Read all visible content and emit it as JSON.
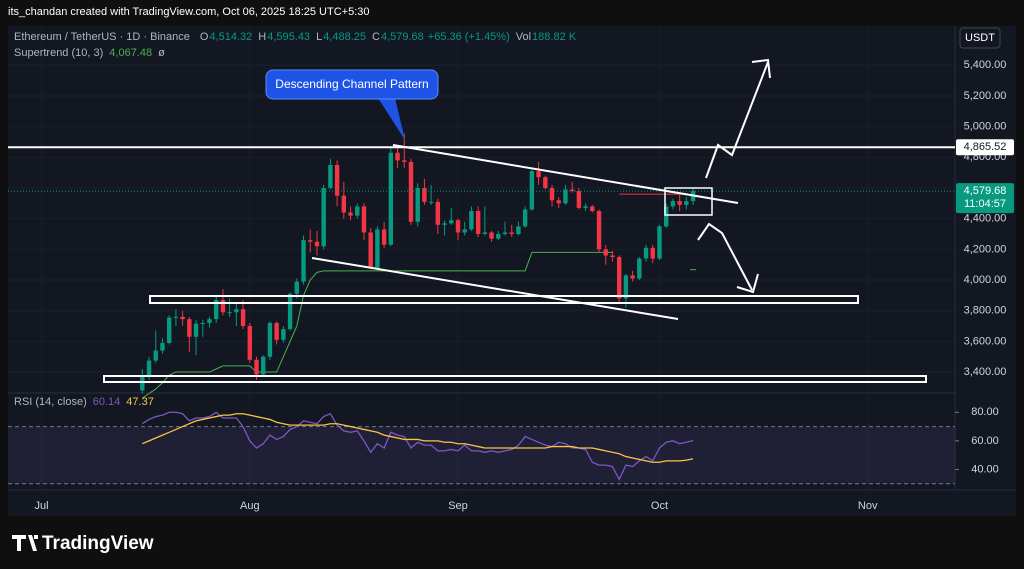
{
  "header": {
    "credit": "its_chandan created with TradingView.com, Oct 06, 2025 18:25 UTC+5:30",
    "symbol": "Ethereum / TetherUS · 1D · Binance",
    "ohlc": [
      {
        "key": "O",
        "value": "4,514.32"
      },
      {
        "key": "H",
        "value": "4,595.43"
      },
      {
        "key": "L",
        "value": "4,488.25"
      },
      {
        "key": "C",
        "value": "4,579.68"
      }
    ],
    "change": "+65.36 (+1.45%)",
    "vol_key": "Vol",
    "vol": "188.82 K",
    "currency": "USDT"
  },
  "chart_data": {
    "type": "candlestick",
    "x": [
      15,
      16,
      17,
      18,
      19,
      20,
      21,
      22,
      23,
      24,
      25,
      26,
      27,
      28,
      29,
      30,
      31,
      32,
      33,
      34,
      35,
      36,
      37,
      38,
      39,
      40,
      41,
      42,
      43,
      44,
      45,
      46,
      47,
      48,
      49,
      50,
      51,
      52,
      53,
      54,
      55,
      56,
      57,
      58,
      59,
      60,
      61,
      62,
      63,
      64,
      65,
      66,
      67,
      68,
      69,
      70,
      71,
      72,
      73,
      74,
      75,
      76,
      77,
      78,
      79,
      80,
      81,
      82,
      83,
      84,
      85,
      86,
      87,
      88,
      89,
      90,
      91,
      92,
      93,
      94,
      95,
      96,
      97
    ],
    "xlim": [
      -5,
      136
    ],
    "xticks": [
      {
        "value": 0,
        "label": "Jul"
      },
      {
        "value": 31,
        "label": "Aug"
      },
      {
        "value": 62,
        "label": "Sep"
      },
      {
        "value": 92,
        "label": "Oct"
      },
      {
        "value": 123,
        "label": "Nov"
      }
    ],
    "open": [
      3280,
      3370,
      3475,
      3540,
      3590,
      3755,
      3760,
      3745,
      3630,
      3715,
      3720,
      3745,
      3870,
      3790,
      3790,
      3810,
      3700,
      3480,
      3385,
      3500,
      3720,
      3610,
      3680,
      3910,
      3990,
      4260,
      4250,
      4220,
      4600,
      4750,
      4550,
      4440,
      4420,
      4480,
      4310,
      4080,
      4330,
      4230,
      4830,
      4780,
      4770,
      4380,
      4600,
      4510,
      4510,
      4360,
      4370,
      4390,
      4310,
      4330,
      4450,
      4300,
      4310,
      4270,
      4300,
      4310,
      4300,
      4350,
      4460,
      4710,
      4670,
      4600,
      4520,
      4500,
      4590,
      4580,
      4470,
      4480,
      4450,
      4200,
      4160,
      4150,
      3880,
      4030,
      4010,
      4140,
      4210,
      4140,
      4350,
      4480,
      4515,
      4490,
      4514.32
    ],
    "high": [
      3420,
      3500,
      3670,
      3620,
      3770,
      3810,
      3800,
      3760,
      3740,
      3740,
      3760,
      3890,
      3940,
      3880,
      3850,
      3870,
      3720,
      3500,
      3510,
      3730,
      3730,
      3700,
      3920,
      4010,
      4290,
      4330,
      4320,
      4620,
      4790,
      4780,
      4640,
      4480,
      4500,
      4500,
      4340,
      4350,
      4380,
      4860,
      4880,
      4955,
      4790,
      4630,
      4660,
      4620,
      4530,
      4390,
      4470,
      4400,
      4380,
      4480,
      4480,
      4480,
      4320,
      4320,
      4380,
      4360,
      4380,
      4480,
      4720,
      4770,
      4680,
      4620,
      4540,
      4620,
      4640,
      4600,
      4500,
      4490,
      4460,
      4230,
      4190,
      4160,
      4040,
      4060,
      4150,
      4230,
      4230,
      4360,
      4500,
      4530,
      4560,
      4540,
      4595.43
    ],
    "low": [
      3260,
      3350,
      3460,
      3520,
      3580,
      3700,
      3700,
      3530,
      3510,
      3630,
      3690,
      3720,
      3770,
      3760,
      3700,
      3680,
      3460,
      3350,
      3370,
      3480,
      3580,
      3590,
      3670,
      3880,
      3970,
      4180,
      4160,
      4200,
      4590,
      4480,
      4400,
      4390,
      4400,
      4260,
      4070,
      4060,
      4210,
      4220,
      4730,
      4730,
      4360,
      4350,
      4490,
      4490,
      4300,
      4290,
      4360,
      4260,
      4290,
      4320,
      4280,
      4290,
      4250,
      4260,
      4290,
      4280,
      4290,
      4340,
      4450,
      4620,
      4590,
      4480,
      4470,
      4490,
      4570,
      4460,
      4450,
      4440,
      4180,
      4100,
      4120,
      3850,
      3820,
      3990,
      4000,
      4120,
      4110,
      4130,
      4340,
      4460,
      4450,
      4460,
      4488.25
    ],
    "close": [
      3370,
      3475,
      3540,
      3590,
      3755,
      3760,
      3745,
      3630,
      3715,
      3720,
      3745,
      3870,
      3790,
      3790,
      3810,
      3700,
      3480,
      3385,
      3500,
      3720,
      3610,
      3680,
      3910,
      3990,
      4260,
      4250,
      4220,
      4600,
      4750,
      4550,
      4440,
      4420,
      4480,
      4310,
      4080,
      4330,
      4230,
      4830,
      4780,
      4770,
      4380,
      4600,
      4510,
      4510,
      4360,
      4370,
      4390,
      4310,
      4330,
      4450,
      4300,
      4310,
      4270,
      4300,
      4310,
      4300,
      4350,
      4460,
      4710,
      4670,
      4600,
      4520,
      4500,
      4590,
      4580,
      4470,
      4480,
      4450,
      4200,
      4160,
      4150,
      3880,
      4030,
      4010,
      4140,
      4210,
      4140,
      4350,
      4480,
      4515,
      4490,
      4514,
      4579.68
    ],
    "up_color": "#089981",
    "down_color": "#f23645",
    "ylim": [
      3270,
      5630
    ],
    "yticks": [
      {
        "value": 5400,
        "label": "5,400.00"
      },
      {
        "value": 5200,
        "label": "5,200.00"
      },
      {
        "value": 5000,
        "label": "5,000.00"
      },
      {
        "value": 4800,
        "label": "4,800.00"
      },
      {
        "value": 4600,
        "label": "4,600.00"
      },
      {
        "value": 4400,
        "label": "4,400.00"
      },
      {
        "value": 4200,
        "label": "4,200.00"
      },
      {
        "value": 4000,
        "label": "4,000.00"
      },
      {
        "value": 3800,
        "label": "3,800.00"
      },
      {
        "value": 3600,
        "label": "3,600.00"
      },
      {
        "value": 3400,
        "label": "3,400.00"
      }
    ],
    "price_line": {
      "value": 4579.68,
      "label": "4,579.68",
      "countdown": "11:04:57"
    },
    "hline": {
      "value": 4865.52,
      "label": "4,865.52"
    },
    "annotation": "Descending Channel Pattern",
    "supertrend": {
      "name": "Supertrend (10, 3)",
      "value_label": "4,067.48",
      "suffix": "ø",
      "up_color": "#4caf50",
      "down_color": "#f23645",
      "up": [
        3230,
        3260,
        3290,
        3330,
        3380,
        3400,
        3400,
        3400,
        3400,
        3400,
        3400,
        3420,
        3440,
        3440,
        3440,
        3440,
        3440,
        3400,
        3400,
        3400,
        3400,
        3500,
        3600,
        3700,
        3900,
        4000,
        4050,
        4060,
        4060,
        4060,
        4060,
        4060,
        4060,
        4060,
        4060,
        4060,
        4060,
        4060,
        4060,
        4060,
        4060,
        4060,
        4060,
        4060,
        4060,
        4060,
        4060,
        4060,
        4060,
        4060,
        4060,
        4060,
        4060,
        4060,
        4060,
        4060,
        4060,
        4060,
        4180,
        4180,
        4180,
        4180,
        4180,
        4180,
        4180,
        4180,
        4180,
        4180,
        4180,
        4180,
        4180,
        null,
        null,
        null,
        null,
        null,
        null,
        null,
        null,
        null,
        null,
        null,
        4067.48
      ],
      "down": [
        null,
        null,
        null,
        null,
        null,
        null,
        null,
        null,
        null,
        null,
        null,
        null,
        null,
        null,
        null,
        null,
        null,
        null,
        null,
        null,
        null,
        null,
        null,
        null,
        null,
        null,
        null,
        null,
        null,
        null,
        null,
        null,
        null,
        null,
        null,
        null,
        null,
        null,
        null,
        null,
        null,
        null,
        null,
        null,
        null,
        null,
        null,
        null,
        null,
        null,
        null,
        null,
        null,
        null,
        null,
        null,
        null,
        null,
        null,
        null,
        null,
        null,
        null,
        null,
        null,
        null,
        null,
        null,
        null,
        null,
        null,
        4560,
        4560,
        4560,
        4560,
        4560,
        4560,
        4560,
        4560,
        4560,
        4560,
        4560,
        null
      ]
    },
    "rsi": {
      "name": "RSI (14, close)",
      "value_label": "60.14",
      "ma_label": "47.37",
      "color": "#7e57c2",
      "ma_color": "#f7c548",
      "ylim": [
        27,
        90
      ],
      "yticks": [
        {
          "value": 80,
          "label": "80.00"
        },
        {
          "value": 60,
          "label": "60.00"
        },
        {
          "value": 40,
          "label": "40.00"
        }
      ],
      "bands": [
        70,
        30
      ],
      "values": [
        72,
        75,
        77,
        78,
        80,
        80,
        79,
        74,
        76,
        76,
        77,
        80,
        76,
        76,
        76,
        70,
        60,
        55,
        58,
        64,
        61,
        63,
        68,
        70,
        74,
        73,
        72,
        77,
        79,
        71,
        67,
        66,
        67,
        60,
        52,
        58,
        55,
        66,
        64,
        63,
        55,
        59,
        57,
        57,
        53,
        53,
        54,
        53,
        57,
        53,
        53,
        52,
        53,
        52,
        53,
        54,
        57,
        63,
        61,
        59,
        57,
        56,
        59,
        58,
        55,
        55,
        54,
        45,
        43,
        43,
        42,
        33,
        43,
        42,
        46,
        49,
        46,
        55,
        59,
        60,
        58,
        59,
        60.14
      ],
      "ma": [
        58,
        60,
        62,
        64,
        66,
        68,
        70,
        72,
        74,
        75,
        76,
        77,
        78,
        78,
        79,
        79,
        78,
        77,
        76,
        75,
        73,
        72,
        71,
        71,
        71,
        71,
        71,
        71,
        72,
        72,
        71,
        70,
        69,
        68,
        67,
        66,
        64,
        63,
        62,
        61,
        61,
        61,
        60,
        60,
        60,
        59,
        59,
        58,
        58,
        57,
        56,
        55,
        55,
        55,
        55,
        55,
        55,
        55,
        55,
        55,
        55,
        56,
        56,
        56,
        56,
        55,
        55,
        55,
        54,
        53,
        52,
        51,
        49,
        48,
        47,
        46,
        45,
        45,
        46,
        46,
        46,
        46.5,
        47.37
      ]
    }
  },
  "footer": {
    "logo": "TradingView"
  }
}
